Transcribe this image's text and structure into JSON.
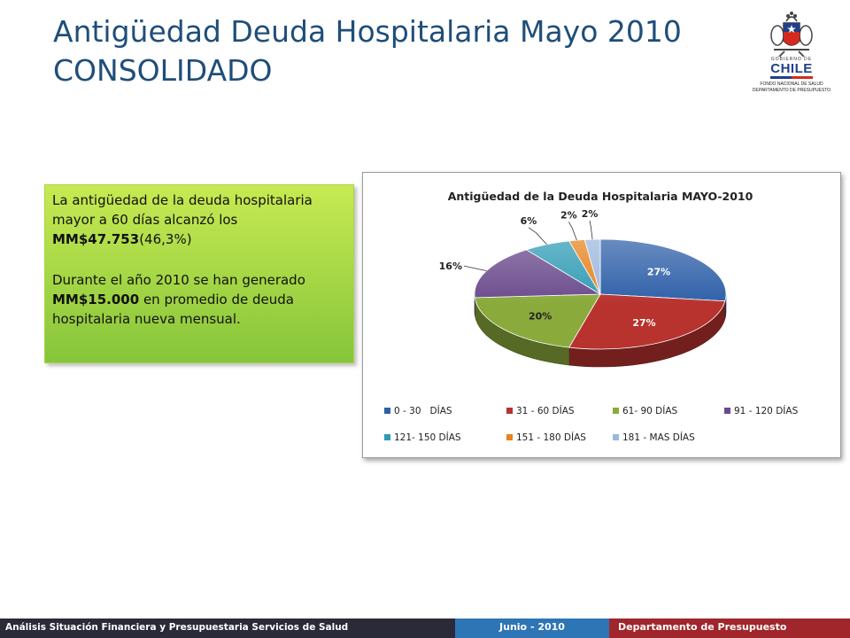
{
  "header": {
    "title_line1": "Antigüedad Deuda Hospitalaria Mayo 2010",
    "title_line2": "CONSOLIDADO"
  },
  "logo": {
    "gobierno": "GOBIERNO DE",
    "country": "CHILE",
    "org_line1": "FONDO NACIONAL DE SALUD",
    "org_line2": "DEPARTAMENTO DE PRESUPUESTO"
  },
  "callout": {
    "p1_text": "La antigüedad de la deuda hospitalaria mayor a 60 días alcanzó los ",
    "p1_bold": "MM$47.753",
    "p1_paren": "(46,3%",
    "p1_close": ")",
    "p2_text1": "Durante el año 2010 se han generado ",
    "p2_bold": "MM$15.000",
    "p2_text2": " en promedio de deuda hospitalaria nueva mensual."
  },
  "chart_data": {
    "type": "pie",
    "title": "Antigüedad de la Deuda Hospitalaria MAYO-2010",
    "legend_position": "bottom",
    "slices": [
      {
        "name": "0 - 30   DÍAS",
        "value": 27,
        "label": "27%",
        "color": "#2e5fa8"
      },
      {
        "name": "31 - 60 DÍAS",
        "value": 27,
        "label": "27%",
        "color": "#b8322e"
      },
      {
        "name": "61- 90 DÍAS",
        "value": 20,
        "label": "20%",
        "color": "#8aaa3c"
      },
      {
        "name": "91 - 120 DÍAS",
        "value": 16,
        "label": "16%",
        "color": "#6a4a8c"
      },
      {
        "name": "121- 150 DÍAS",
        "value": 6,
        "label": "6%",
        "color": "#2f9bb5"
      },
      {
        "name": "151 - 180 DÍAS",
        "value": 2,
        "label": "2%",
        "color": "#e8821e"
      },
      {
        "name": "181 - MAS DÍAS",
        "value": 2,
        "label": "2%",
        "color": "#9bb7dc"
      }
    ]
  },
  "footer": {
    "left": "Análisis Situación Financiera y Presupuestaria Servicios de Salud",
    "center": "Junio - 2010",
    "right": "Departamento de Presupuesto"
  }
}
